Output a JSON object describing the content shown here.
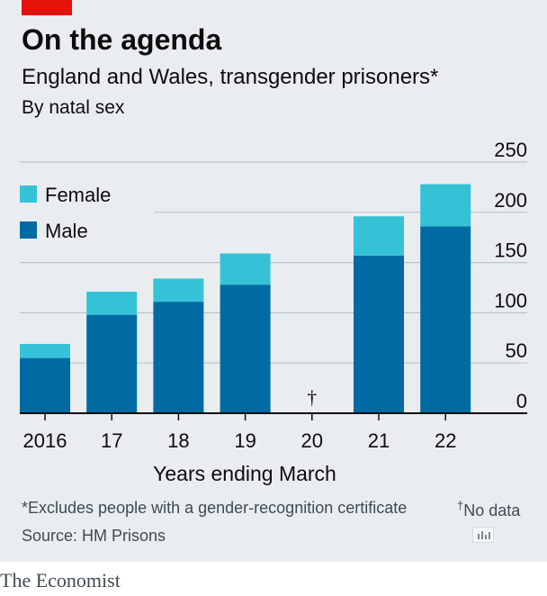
{
  "header": {
    "title": "On the agenda",
    "subtitle": "England and Wales, transgender prisoners*",
    "subsubtitle": "By natal sex"
  },
  "colors": {
    "female": "#36c2d6",
    "male": "#006ba2",
    "grid": "#b7c6cf",
    "axis": "#0c0c0c",
    "brand_red": "#e3120b"
  },
  "chart_data": {
    "type": "bar",
    "stacked": true,
    "categories": [
      "2016",
      "17",
      "18",
      "19",
      "20",
      "21",
      "22"
    ],
    "series": [
      {
        "name": "Male",
        "values": [
          55,
          98,
          111,
          128,
          null,
          157,
          186
        ]
      },
      {
        "name": "Female",
        "values": [
          14,
          23,
          23,
          31,
          null,
          39,
          42
        ]
      }
    ],
    "ylim": [
      0,
      250
    ],
    "yticks": [
      "0",
      "50",
      "100",
      "150",
      "200",
      "250"
    ],
    "xlabel": "Years ending March",
    "ylabel": "",
    "legend": [
      "Female",
      "Male"
    ],
    "legend_position": "top-left",
    "y_axis_side": "right",
    "grid": true,
    "no_data_marker": "†",
    "no_data_category": "20"
  },
  "notes": {
    "footnote": "*Excludes people with a gender-recognition certificate",
    "nodata_symbol": "†",
    "nodata_text": "No data",
    "source": "Source: HM Prisons"
  },
  "brand": "The Economist"
}
